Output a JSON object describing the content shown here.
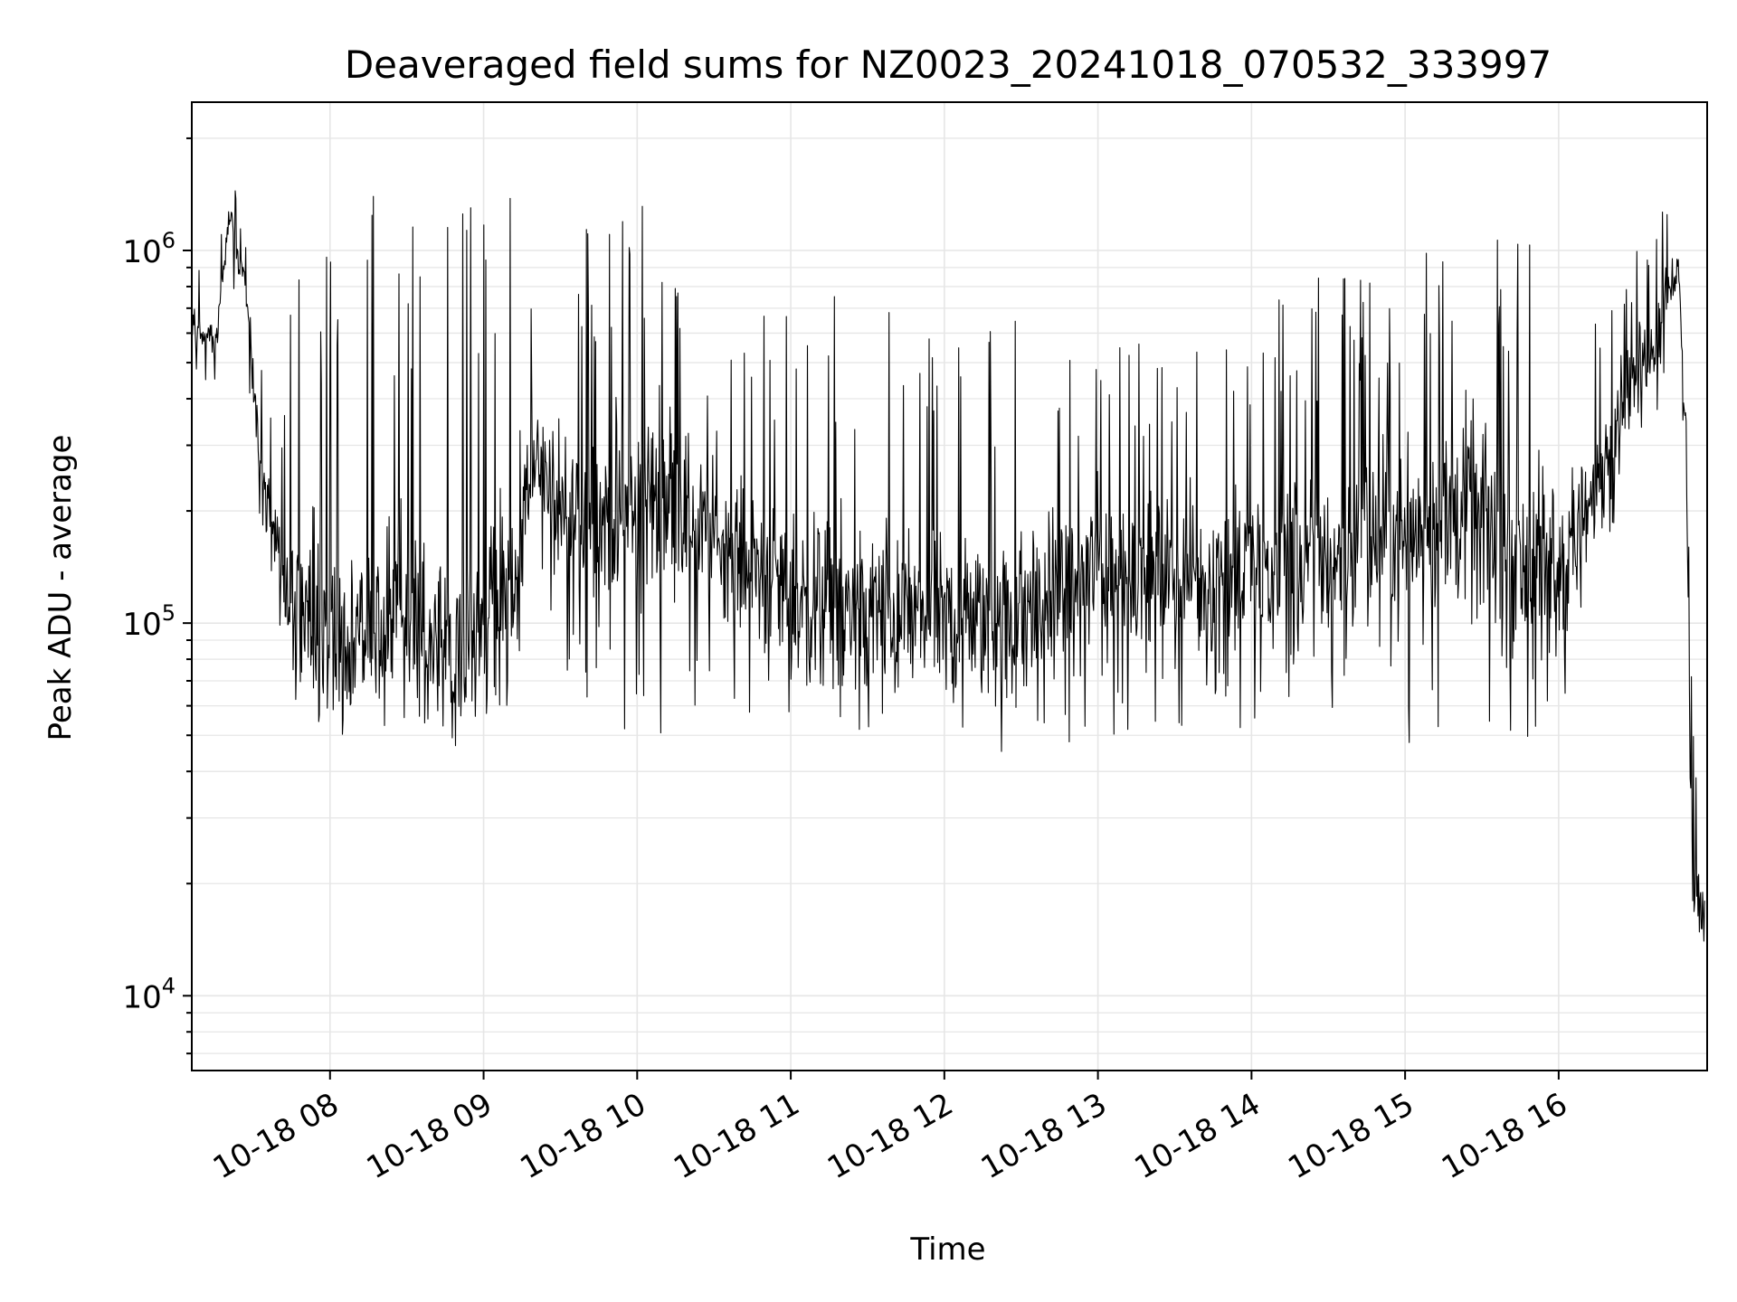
{
  "chart_data": {
    "type": "line",
    "title": "Deaveraged field sums for NZ0023_20241018_070532_333997",
    "xlabel": "Time",
    "ylabel": "Peak ADU - average",
    "x_axis": {
      "kind": "time",
      "range": [
        "2024-10-18T07:06",
        "2024-10-18T16:58"
      ],
      "tick_values": [
        "2024-10-18T08:00",
        "2024-10-18T09:00",
        "2024-10-18T10:00",
        "2024-10-18T11:00",
        "2024-10-18T12:00",
        "2024-10-18T13:00",
        "2024-10-18T14:00",
        "2024-10-18T15:00",
        "2024-10-18T16:00"
      ],
      "tick_labels": [
        "10-18 08",
        "10-18 09",
        "10-18 10",
        "10-18 11",
        "10-18 12",
        "10-18 13",
        "10-18 14",
        "10-18 15",
        "10-18 16"
      ]
    },
    "y_axis": {
      "scale": "log",
      "range": [
        6300,
        2500000
      ],
      "major_ticks": [
        10000,
        100000,
        1000000
      ],
      "major_tick_labels": [
        {
          "base": "10",
          "exp": "4"
        },
        {
          "base": "10",
          "exp": "5"
        },
        {
          "base": "10",
          "exp": "6"
        }
      ]
    },
    "grid": true,
    "line_color": "#000000",
    "grid_color": "#e6e6e6",
    "envelope": {
      "description_units": "time in hours since 00:00 on 2024-10-18; values in ADU",
      "points": [
        {
          "t": 7.1,
          "low": 480000,
          "mid": 620000,
          "high": 1000000
        },
        {
          "t": 7.25,
          "low": 430000,
          "mid": 560000,
          "high": 780000
        },
        {
          "t": 7.35,
          "low": 800000,
          "mid": 1300000,
          "high": 1900000
        },
        {
          "t": 7.45,
          "low": 560000,
          "mid": 800000,
          "high": 1200000
        },
        {
          "t": 7.55,
          "low": 160000,
          "mid": 260000,
          "high": 520000
        },
        {
          "t": 7.65,
          "low": 110000,
          "mid": 170000,
          "high": 300000
        },
        {
          "t": 7.8,
          "low": 55000,
          "mid": 100000,
          "high": 1300000
        },
        {
          "t": 8.1,
          "low": 50000,
          "mid": 95000,
          "high": 1500000
        },
        {
          "t": 8.5,
          "low": 55000,
          "mid": 110000,
          "high": 1400000
        },
        {
          "t": 8.7,
          "low": 45000,
          "mid": 85000,
          "high": 1400000
        },
        {
          "t": 9.0,
          "low": 50000,
          "mid": 100000,
          "high": 1300000
        },
        {
          "t": 9.2,
          "low": 60000,
          "mid": 140000,
          "high": 1600000
        },
        {
          "t": 9.35,
          "low": 120000,
          "mid": 300000,
          "high": 600000
        },
        {
          "t": 9.5,
          "low": 55000,
          "mid": 180000,
          "high": 1100000
        },
        {
          "t": 10.0,
          "low": 50000,
          "mid": 200000,
          "high": 1500000
        },
        {
          "t": 10.2,
          "low": 45000,
          "mid": 230000,
          "high": 1000000
        },
        {
          "t": 10.5,
          "low": 60000,
          "mid": 170000,
          "high": 550000
        },
        {
          "t": 11.0,
          "low": 55000,
          "mid": 120000,
          "high": 750000
        },
        {
          "t": 11.5,
          "low": 50000,
          "mid": 110000,
          "high": 800000
        },
        {
          "t": 12.0,
          "low": 45000,
          "mid": 100000,
          "high": 700000
        },
        {
          "t": 12.5,
          "low": 42000,
          "mid": 105000,
          "high": 680000
        },
        {
          "t": 13.0,
          "low": 45000,
          "mid": 140000,
          "high": 600000
        },
        {
          "t": 13.5,
          "low": 50000,
          "mid": 130000,
          "high": 620000
        },
        {
          "t": 14.0,
          "low": 50000,
          "mid": 140000,
          "high": 800000
        },
        {
          "t": 14.5,
          "low": 50000,
          "mid": 150000,
          "high": 850000
        },
        {
          "t": 15.0,
          "low": 48000,
          "mid": 180000,
          "high": 850000
        },
        {
          "t": 15.4,
          "low": 45000,
          "mid": 200000,
          "high": 1300000
        },
        {
          "t": 15.7,
          "low": 50000,
          "mid": 150000,
          "high": 1100000
        },
        {
          "t": 16.0,
          "low": 48000,
          "mid": 140000,
          "high": 1100000
        },
        {
          "t": 16.2,
          "low": 90000,
          "mid": 200000,
          "high": 900000
        },
        {
          "t": 16.4,
          "low": 200000,
          "mid": 400000,
          "high": 900000
        },
        {
          "t": 16.65,
          "low": 350000,
          "mid": 600000,
          "high": 1200000
        },
        {
          "t": 16.7,
          "low": 500000,
          "mid": 800000,
          "high": 1500000
        },
        {
          "t": 16.78,
          "low": 600000,
          "mid": 900000,
          "high": 1100000
        },
        {
          "t": 16.83,
          "low": 150000,
          "mid": 300000,
          "high": 400000
        },
        {
          "t": 16.87,
          "low": 15000,
          "mid": 20000,
          "high": 60000
        },
        {
          "t": 16.95,
          "low": 9000,
          "mid": 16000,
          "high": 25000
        }
      ]
    }
  }
}
